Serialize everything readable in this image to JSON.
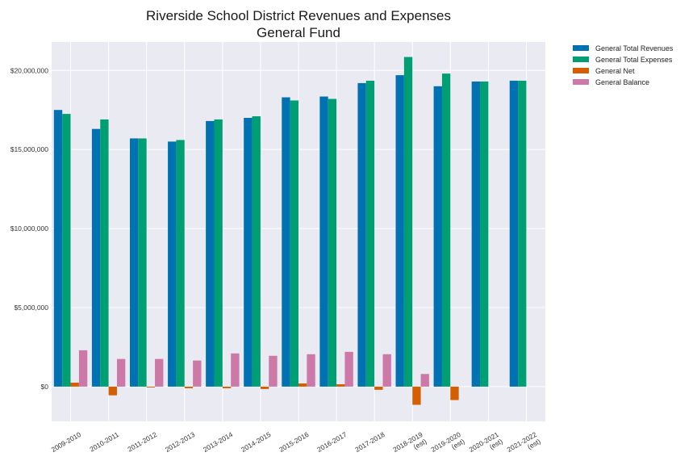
{
  "chart_data": {
    "type": "bar",
    "title_lines": [
      "Riverside School District Revenues and Expenses",
      "General Fund"
    ],
    "xlabel": "",
    "ylabel": "",
    "ylim": [
      -2200000,
      21800000
    ],
    "yticks": [
      0,
      5000000,
      10000000,
      15000000,
      20000000
    ],
    "ytick_labels": [
      "$0",
      "$5,000,000",
      "$10,000,000",
      "$15,000,000",
      "$20,000,000"
    ],
    "grid": true,
    "legend_position": "outside top-right",
    "categories": [
      [
        "2009-2010"
      ],
      [
        "2010-2011"
      ],
      [
        "2011-2012"
      ],
      [
        "2012-2013"
      ],
      [
        "2013-2014"
      ],
      [
        "2014-2015"
      ],
      [
        "2015-2016"
      ],
      [
        "2016-2017"
      ],
      [
        "2017-2018"
      ],
      [
        "2018-2019",
        "(est)"
      ],
      [
        "2019-2020",
        "(est)"
      ],
      [
        "2020-2021",
        "(est)"
      ],
      [
        "2021-2022",
        "(est)"
      ]
    ],
    "series": [
      {
        "name": "General Total Revenues",
        "color": "#0072b2",
        "values": [
          17500000,
          16300000,
          15700000,
          15500000,
          16800000,
          17000000,
          18300000,
          18350000,
          19200000,
          19700000,
          19000000,
          19300000,
          19350000
        ]
      },
      {
        "name": "General Total Expenses",
        "color": "#009e73",
        "values": [
          17250000,
          16900000,
          15700000,
          15600000,
          16900000,
          17100000,
          18100000,
          18200000,
          19350000,
          20850000,
          19800000,
          19300000,
          19350000
        ]
      },
      {
        "name": "General Net",
        "color": "#d55e00",
        "values": [
          250000,
          -550000,
          -30000,
          -100000,
          -100000,
          -150000,
          200000,
          150000,
          -200000,
          -1150000,
          -850000,
          0,
          0
        ]
      },
      {
        "name": "General Balance",
        "color": "#cc79a7",
        "values": [
          2300000,
          1750000,
          1750000,
          1650000,
          2100000,
          1950000,
          2050000,
          2200000,
          2050000,
          800000,
          null,
          null,
          null
        ]
      }
    ]
  }
}
